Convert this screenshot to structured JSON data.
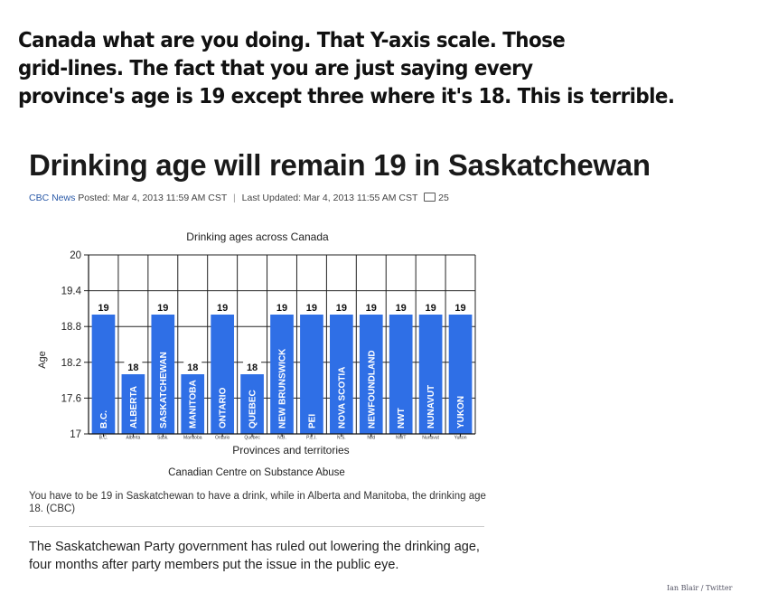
{
  "post": {
    "caption_lines": [
      "Canada what are you doing. That Y-axis scale. Those",
      "grid-lines. The fact that you are just saying every",
      "province's age is 19 except three where it's 18. This is terrible."
    ],
    "credit": "Ian Blair / Twitter"
  },
  "article": {
    "headline": "Drinking age will remain 19 in Saskatchewan",
    "source": "CBC News",
    "posted": "Posted: Mar 4, 2013 11:59 AM CST",
    "separator": "|",
    "updated": "Last Updated: Mar 4, 2013 11:55 AM CST",
    "comment_count": "25",
    "figure_caption": "You have to be 19 in Saskatchewan to have a drink, while in Alberta and Manitoba, the drinking age 18. (CBC)",
    "body": "The Saskatchewan Party government has ruled out lowering the drinking age, four months after party members put the issue in the public eye."
  },
  "chart_data": {
    "type": "bar",
    "title": "Drinking ages across Canada",
    "xlabel": "Provinces and territories",
    "ylabel": "Age",
    "source": "Canadian Centre on Substance Abuse",
    "ylim": [
      17,
      20
    ],
    "yticks": [
      17,
      17.6,
      18.2,
      18.8,
      19.4,
      20
    ],
    "grid": true,
    "bar_color": "#2f6fe6",
    "categories": [
      "B.C.",
      "ALBERTA",
      "SASKATCHEWAN",
      "MANITOBA",
      "ONTARIO",
      "QUEBEC",
      "NEW BRUNSWICK",
      "PEI",
      "NOVA SCOTIA",
      "NEWFOUNDLAND",
      "NWT",
      "NUNAVUT",
      "YUKON"
    ],
    "tick_labels": [
      "B.C.",
      "Alberta",
      "Sask.",
      "Manitoba",
      "Ontario",
      "Quebec",
      "N.B.",
      "P.E.I.",
      "N.S.",
      "Nfld",
      "NWT",
      "Nunavut",
      "Yukon"
    ],
    "values": [
      19,
      18,
      19,
      18,
      19,
      18,
      19,
      19,
      19,
      19,
      19,
      19,
      19
    ],
    "data_labels": [
      "19",
      "18",
      "19",
      "18",
      "19",
      "18",
      "19",
      "19",
      "19",
      "19",
      "19",
      "19",
      "19"
    ]
  }
}
